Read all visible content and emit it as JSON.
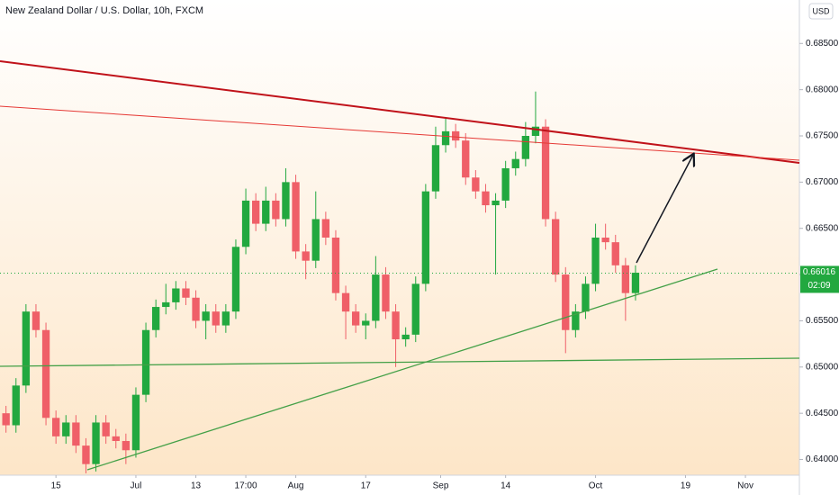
{
  "chart_data": {
    "type": "candlestick",
    "title": "New Zealand Dollar / U.S. Dollar, 10h, FXCM",
    "currency": "USD",
    "up_color": "#22a83f",
    "down_color": "#ef5f68",
    "xlim": [
      -11.2,
      148.8
    ],
    "xticks": [
      {
        "value": 0,
        "label": "15"
      },
      {
        "value": 16,
        "label": "Jul"
      },
      {
        "value": 28,
        "label": "13"
      },
      {
        "value": 38,
        "label": "17:00"
      },
      {
        "value": 48,
        "label": "Aug"
      },
      {
        "value": 62,
        "label": "17"
      },
      {
        "value": 77,
        "label": "Sep"
      },
      {
        "value": 90,
        "label": "14"
      },
      {
        "value": 108,
        "label": "Oct"
      },
      {
        "value": 126,
        "label": "19"
      },
      {
        "value": 138,
        "label": "Nov"
      }
    ],
    "ylim": [
      0.6383,
      0.6897
    ],
    "yticks": [
      {
        "value": 0.64,
        "label": "0.64000"
      },
      {
        "value": 0.645,
        "label": "0.64500"
      },
      {
        "value": 0.65,
        "label": "0.65000"
      },
      {
        "value": 0.655,
        "label": "0.65500"
      },
      {
        "value": 0.66,
        "label": "0.66000"
      },
      {
        "value": 0.665,
        "label": "0.66500"
      },
      {
        "value": 0.67,
        "label": "0.67000"
      },
      {
        "value": 0.675,
        "label": "0.67500"
      },
      {
        "value": 0.68,
        "label": "0.68000"
      },
      {
        "value": 0.685,
        "label": "0.68500"
      }
    ],
    "last_price": 0.66016,
    "countdown": "02:09",
    "x": [
      -10,
      -8,
      -6,
      -4,
      -2,
      0,
      2,
      4,
      6,
      8,
      10,
      12,
      14,
      16,
      18,
      20,
      22,
      24,
      26,
      28,
      30,
      32,
      34,
      36,
      38,
      40,
      42,
      44,
      46,
      48,
      50,
      52,
      54,
      56,
      58,
      60,
      62,
      64,
      66,
      68,
      70,
      72,
      74,
      76,
      78,
      80,
      82,
      84,
      86,
      88,
      90,
      92,
      94,
      96,
      98,
      100,
      102,
      104,
      106,
      108,
      110,
      112,
      114,
      116
    ],
    "open": [
      0.645,
      0.6437,
      0.648,
      0.656,
      0.654,
      0.6445,
      0.6425,
      0.644,
      0.6415,
      0.6395,
      0.644,
      0.6425,
      0.642,
      0.641,
      0.647,
      0.654,
      0.6565,
      0.657,
      0.6585,
      0.6575,
      0.655,
      0.656,
      0.6545,
      0.656,
      0.663,
      0.668,
      0.6655,
      0.668,
      0.666,
      0.67,
      0.6625,
      0.6615,
      0.666,
      0.664,
      0.658,
      0.656,
      0.6545,
      0.655,
      0.66,
      0.656,
      0.653,
      0.6535,
      0.659,
      0.669,
      0.674,
      0.6755,
      0.6745,
      0.6705,
      0.669,
      0.6675,
      0.668,
      0.6715,
      0.6725,
      0.675,
      0.676,
      0.666,
      0.66,
      0.654,
      0.656,
      0.659,
      0.664,
      0.6635,
      0.661,
      0.658
    ],
    "high": [
      0.6458,
      0.6488,
      0.6568,
      0.6568,
      0.6548,
      0.6453,
      0.6448,
      0.6448,
      0.6423,
      0.6448,
      0.6448,
      0.6433,
      0.6428,
      0.6478,
      0.6548,
      0.6573,
      0.659,
      0.6593,
      0.6593,
      0.6583,
      0.6568,
      0.6568,
      0.6568,
      0.6638,
      0.6693,
      0.6688,
      0.6695,
      0.6688,
      0.6715,
      0.6708,
      0.6633,
      0.669,
      0.6668,
      0.6648,
      0.6588,
      0.6568,
      0.6558,
      0.662,
      0.6608,
      0.6568,
      0.6543,
      0.6598,
      0.6698,
      0.676,
      0.677,
      0.6763,
      0.6753,
      0.6713,
      0.6698,
      0.6688,
      0.6723,
      0.6733,
      0.6765,
      0.6798,
      0.6768,
      0.6668,
      0.6608,
      0.6568,
      0.6598,
      0.6655,
      0.6655,
      0.6643,
      0.6618,
      0.661
    ],
    "low": [
      0.6429,
      0.6429,
      0.6472,
      0.6532,
      0.6437,
      0.6417,
      0.6417,
      0.6407,
      0.6385,
      0.6387,
      0.6417,
      0.6412,
      0.6395,
      0.6402,
      0.6462,
      0.6532,
      0.6557,
      0.6562,
      0.6567,
      0.6542,
      0.653,
      0.6537,
      0.6537,
      0.6552,
      0.6622,
      0.6647,
      0.6647,
      0.6652,
      0.6652,
      0.6617,
      0.6595,
      0.6607,
      0.6632,
      0.6572,
      0.653,
      0.6537,
      0.653,
      0.6542,
      0.6552,
      0.65,
      0.6522,
      0.6527,
      0.6582,
      0.6682,
      0.6732,
      0.6737,
      0.6697,
      0.6682,
      0.6667,
      0.66,
      0.6672,
      0.6707,
      0.6717,
      0.6742,
      0.6652,
      0.6592,
      0.6515,
      0.6532,
      0.6552,
      0.6582,
      0.6627,
      0.6602,
      0.655,
      0.6572
    ],
    "close": [
      0.6437,
      0.648,
      0.656,
      0.654,
      0.6445,
      0.6425,
      0.644,
      0.6415,
      0.6395,
      0.644,
      0.6425,
      0.642,
      0.641,
      0.647,
      0.654,
      0.6565,
      0.657,
      0.6585,
      0.6575,
      0.655,
      0.656,
      0.6545,
      0.656,
      0.663,
      0.668,
      0.6655,
      0.668,
      0.666,
      0.67,
      0.6625,
      0.6615,
      0.666,
      0.664,
      0.658,
      0.656,
      0.6545,
      0.655,
      0.66,
      0.656,
      0.653,
      0.6535,
      0.659,
      0.669,
      0.674,
      0.6755,
      0.6745,
      0.6705,
      0.669,
      0.6675,
      0.668,
      0.6715,
      0.6725,
      0.675,
      0.676,
      0.666,
      0.66,
      0.654,
      0.656,
      0.659,
      0.664,
      0.6635,
      0.661,
      0.658,
      0.6602
    ]
  }
}
